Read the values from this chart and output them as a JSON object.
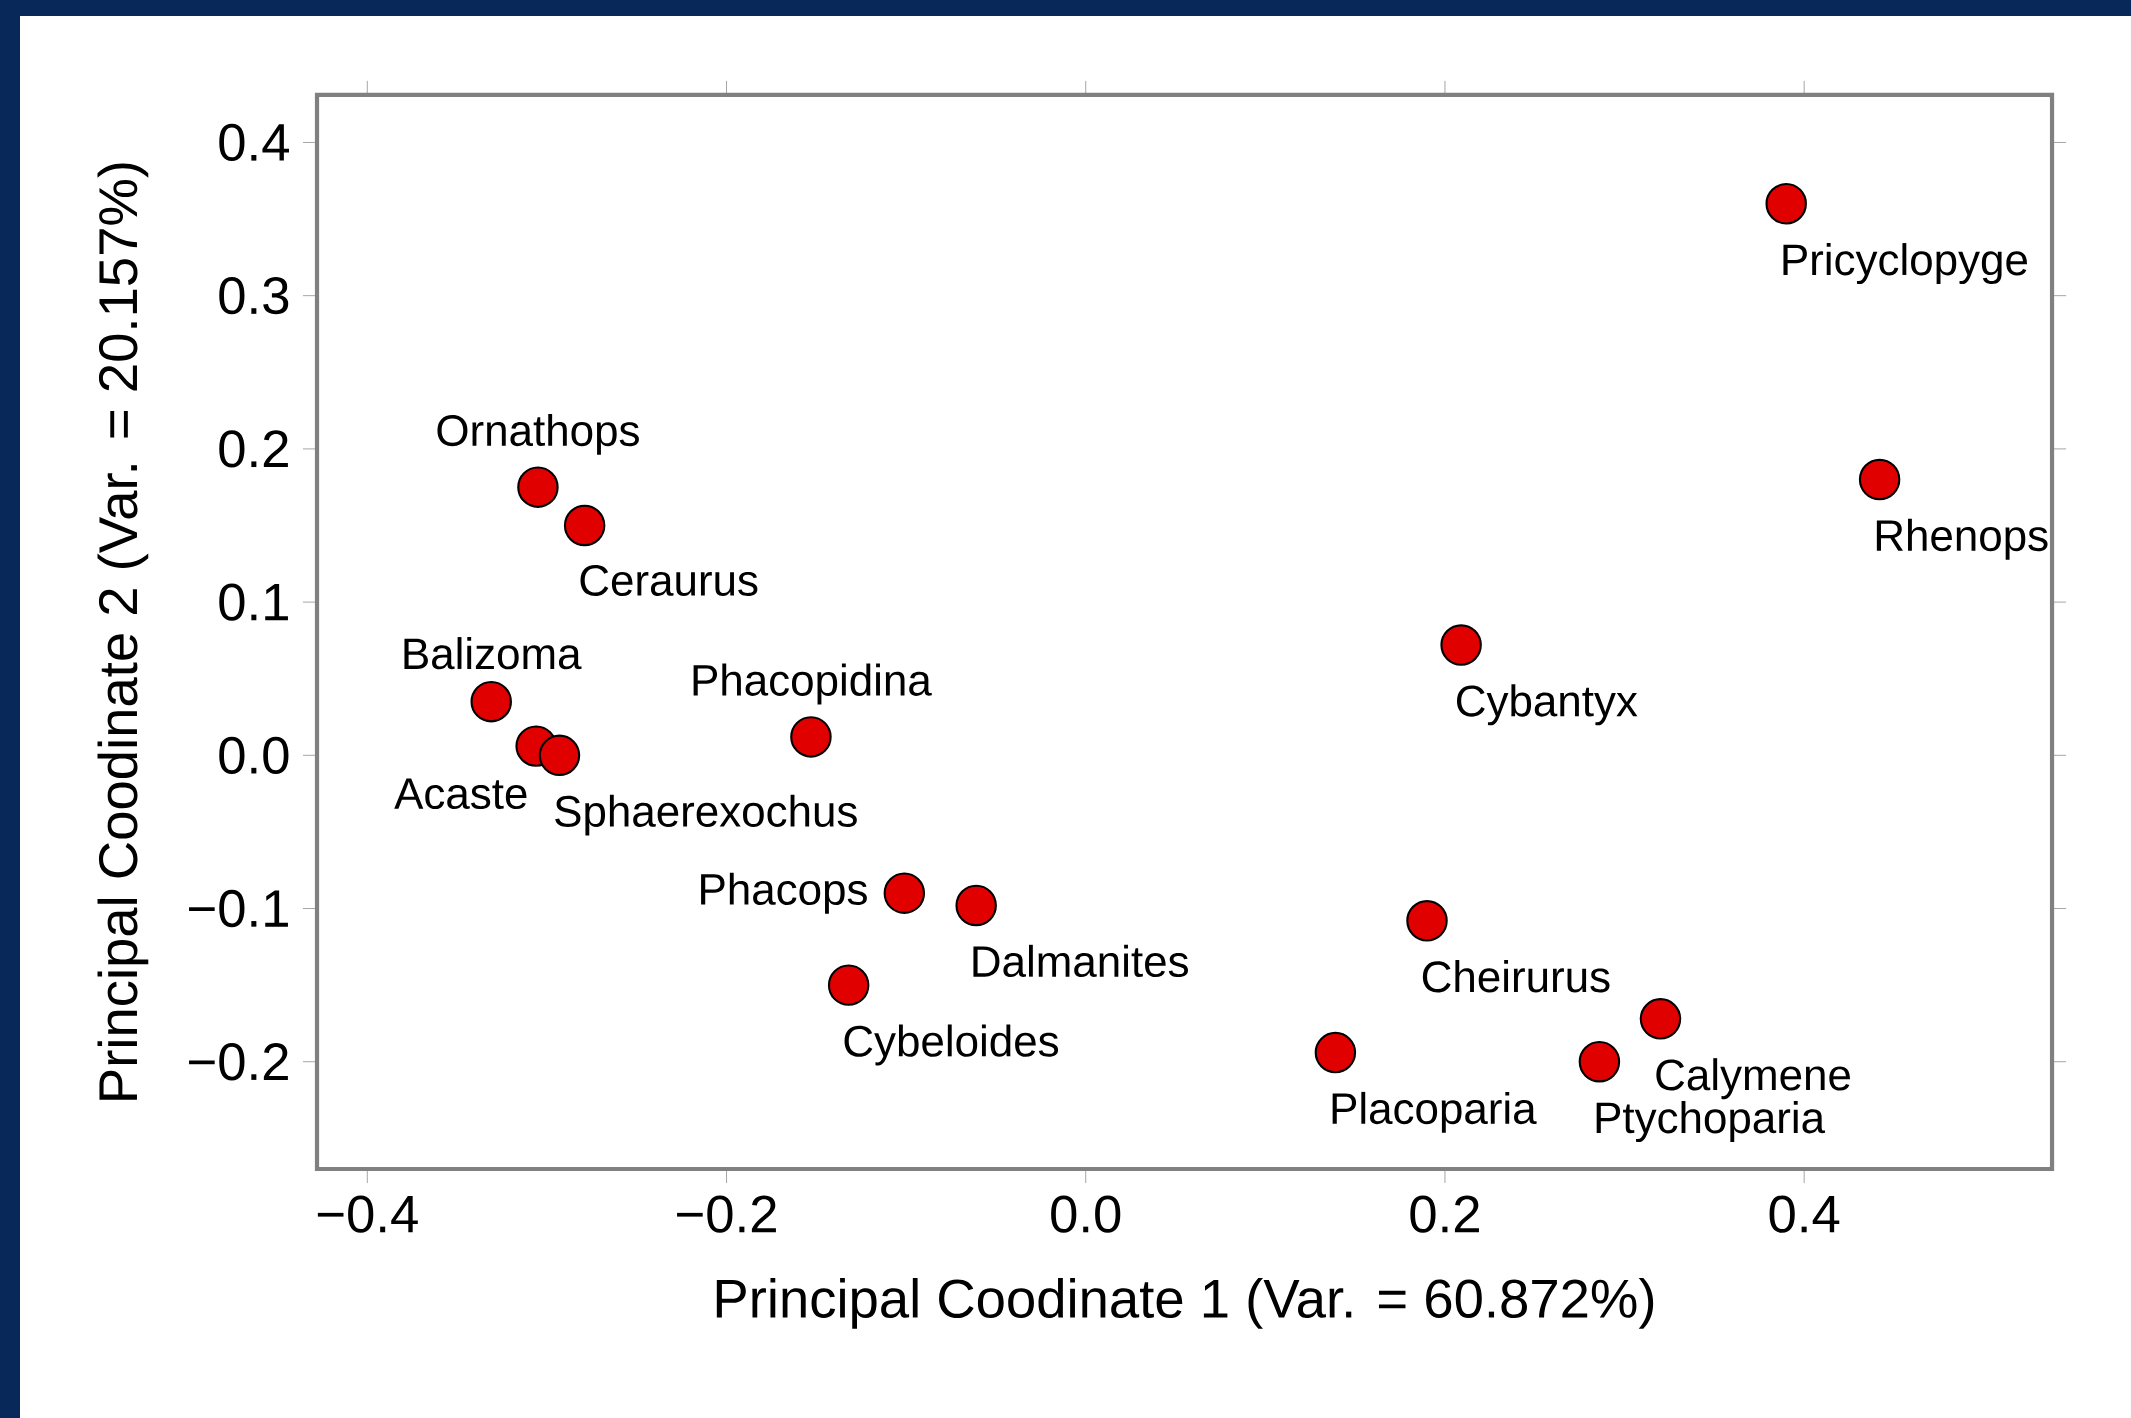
{
  "chart_data": {
    "type": "scatter",
    "xlabel": "Principal Coodinate 1 (Var. = 60.872%)",
    "ylabel": "Principal Coodinate 2 (Var. = 20.157%)",
    "x": [
      0.39,
      0.442,
      -0.305,
      -0.279,
      0.209,
      -0.331,
      -0.306,
      -0.293,
      -0.153,
      -0.101,
      -0.061,
      -0.132,
      0.19,
      0.139,
      0.286,
      0.32
    ],
    "series": [
      {
        "color": "#e00000",
        "values": [
          0.36,
          0.18,
          0.175,
          0.15,
          0.072,
          0.035,
          0.006,
          0.0,
          0.012,
          -0.09,
          -0.098,
          -0.15,
          -0.108,
          -0.194,
          -0.2,
          -0.172
        ]
      }
    ],
    "xlim": [
      -0.428,
      0.538
    ],
    "ylim": [
      -0.27,
      0.431
    ],
    "xticks": [
      {
        "value": -0.4,
        "label": "−0.4"
      },
      {
        "value": -0.2,
        "label": "−0.2"
      },
      {
        "value": 0,
        "label": "0.0"
      },
      {
        "value": 0.2,
        "label": "0.2"
      },
      {
        "value": 0.4,
        "label": "0.4"
      }
    ],
    "yticks": [
      {
        "value": -0.2,
        "label": "−0.2"
      },
      {
        "value": -0.1,
        "label": "−0.1"
      },
      {
        "value": 0,
        "label": "0.0"
      },
      {
        "value": 0.1,
        "label": "0.1"
      },
      {
        "value": 0.2,
        "label": "0.2"
      },
      {
        "value": 0.3,
        "label": "0.3"
      },
      {
        "value": 0.4,
        "label": "0.4"
      }
    ],
    "grid": false,
    "annotations": [
      {
        "text": "Pricyclopyge",
        "x": 0.39,
        "y": 0.36
      },
      {
        "text": "Rhenops",
        "x": 0.442,
        "y": 0.18
      },
      {
        "text": "Ornathops",
        "x": -0.305,
        "y": 0.175
      },
      {
        "text": "Ceraurus",
        "x": -0.279,
        "y": 0.15
      },
      {
        "text": "Cybantyx",
        "x": 0.209,
        "y": 0.072
      },
      {
        "text": "Balizoma",
        "x": -0.331,
        "y": 0.035
      },
      {
        "text": "Acaste",
        "x": -0.306,
        "y": 0.006
      },
      {
        "text": "Sphaerexochus",
        "x": -0.293,
        "y": 0.0
      },
      {
        "text": "Phacopidina",
        "x": -0.153,
        "y": 0.012
      },
      {
        "text": "Phacops",
        "x": -0.101,
        "y": -0.09
      },
      {
        "text": "Dalmanites",
        "x": -0.061,
        "y": -0.098
      },
      {
        "text": "Cybeloides",
        "x": -0.132,
        "y": -0.15
      },
      {
        "text": "Cheirurus",
        "x": 0.19,
        "y": -0.108
      },
      {
        "text": "Placoparia",
        "x": 0.139,
        "y": -0.194
      },
      {
        "text": "Ptychoparia",
        "x": 0.286,
        "y": -0.2
      },
      {
        "text": "Calymene",
        "x": 0.32,
        "y": -0.172
      }
    ]
  }
}
